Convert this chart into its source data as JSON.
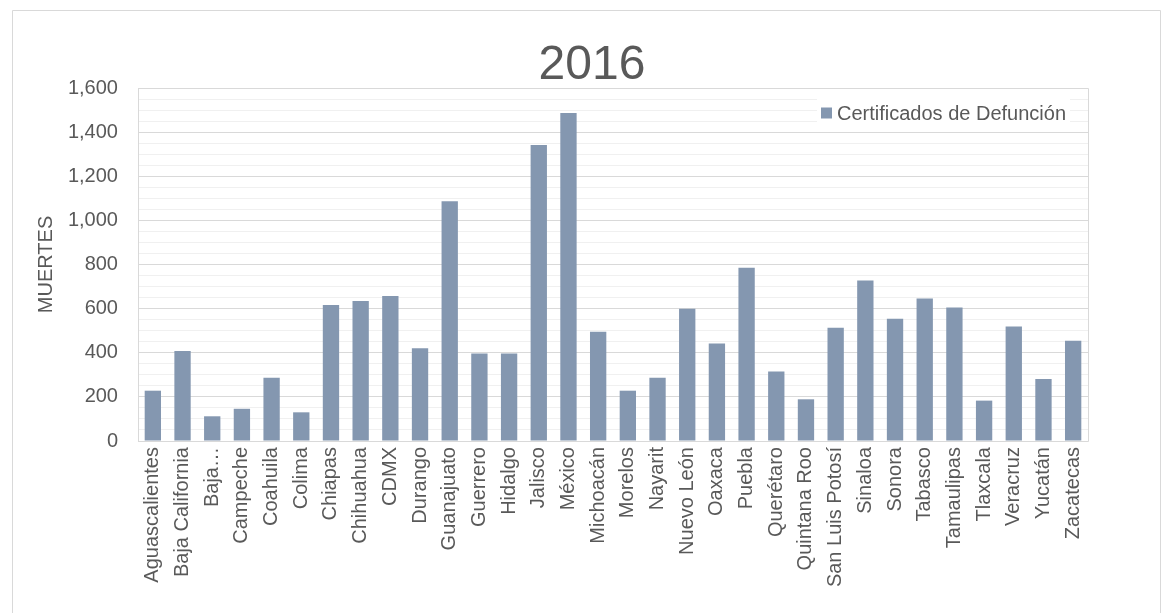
{
  "chart_data": {
    "type": "bar",
    "title": "2016",
    "ylabel": "MUERTES",
    "categories": [
      "Aguascalientes",
      "Baja California",
      "Baja…",
      "Campeche",
      "Coahuila",
      "Colima",
      "Chiapas",
      "Chihuahua",
      "CDMX",
      "Durango",
      "Guanajuato",
      "Guerrero",
      "Hidalgo",
      "Jalisco",
      "México",
      "Michoacán",
      "Morelos",
      "Nayarit",
      "Nuevo León",
      "Oaxaca",
      "Puebla",
      "Querétaro",
      "Quintana Roo",
      "San Luis Potosí",
      "Sinaloa",
      "Sonora",
      "Tabasco",
      "Tamaulipas",
      "Tlaxcala",
      "Veracruz",
      "Yucatán",
      "Zacatecas"
    ],
    "series": [
      {
        "name": "Certificados de Defunción",
        "color": "#8497b0",
        "values": [
          228,
          408,
          112,
          146,
          287,
          130,
          616,
          634,
          657,
          420,
          1087,
          397,
          397,
          1342,
          1487,
          495,
          228,
          287,
          599,
          442,
          785,
          315,
          189,
          513,
          728,
          554,
          646,
          605,
          183,
          519,
          281,
          454
        ]
      }
    ],
    "ylim": [
      0,
      1600
    ],
    "yticks": [
      0,
      {
        "value": 50,
        "label": null
      },
      {
        "value": 100,
        "label": null
      },
      {
        "value": 150,
        "label": null
      },
      200,
      {
        "value": 250,
        "label": null
      },
      {
        "value": 300,
        "label": null
      },
      {
        "value": 350,
        "label": null
      },
      400,
      {
        "value": 450,
        "label": null
      },
      {
        "value": 500,
        "label": null
      },
      {
        "value": 550,
        "label": null
      },
      600,
      {
        "value": 650,
        "label": null
      },
      {
        "value": 700,
        "label": null
      },
      {
        "value": 750,
        "label": null
      },
      800,
      {
        "value": 850,
        "label": null
      },
      {
        "value": 900,
        "label": null
      },
      {
        "value": 950,
        "label": null
      },
      {
        "value": 1000,
        "label": "1,000"
      },
      {
        "value": 1050,
        "label": null
      },
      {
        "value": 1100,
        "label": null
      },
      {
        "value": 1150,
        "label": null
      },
      {
        "value": 1200,
        "label": "1,200"
      },
      {
        "value": 1250,
        "label": null
      },
      {
        "value": 1300,
        "label": null
      },
      {
        "value": 1350,
        "label": null
      },
      {
        "value": 1400,
        "label": "1,400"
      },
      {
        "value": 1450,
        "label": null
      },
      {
        "value": 1500,
        "label": null
      },
      {
        "value": 1550,
        "label": null
      },
      {
        "value": 1600,
        "label": "1,600"
      }
    ],
    "grid": "y",
    "legend": "top right"
  }
}
